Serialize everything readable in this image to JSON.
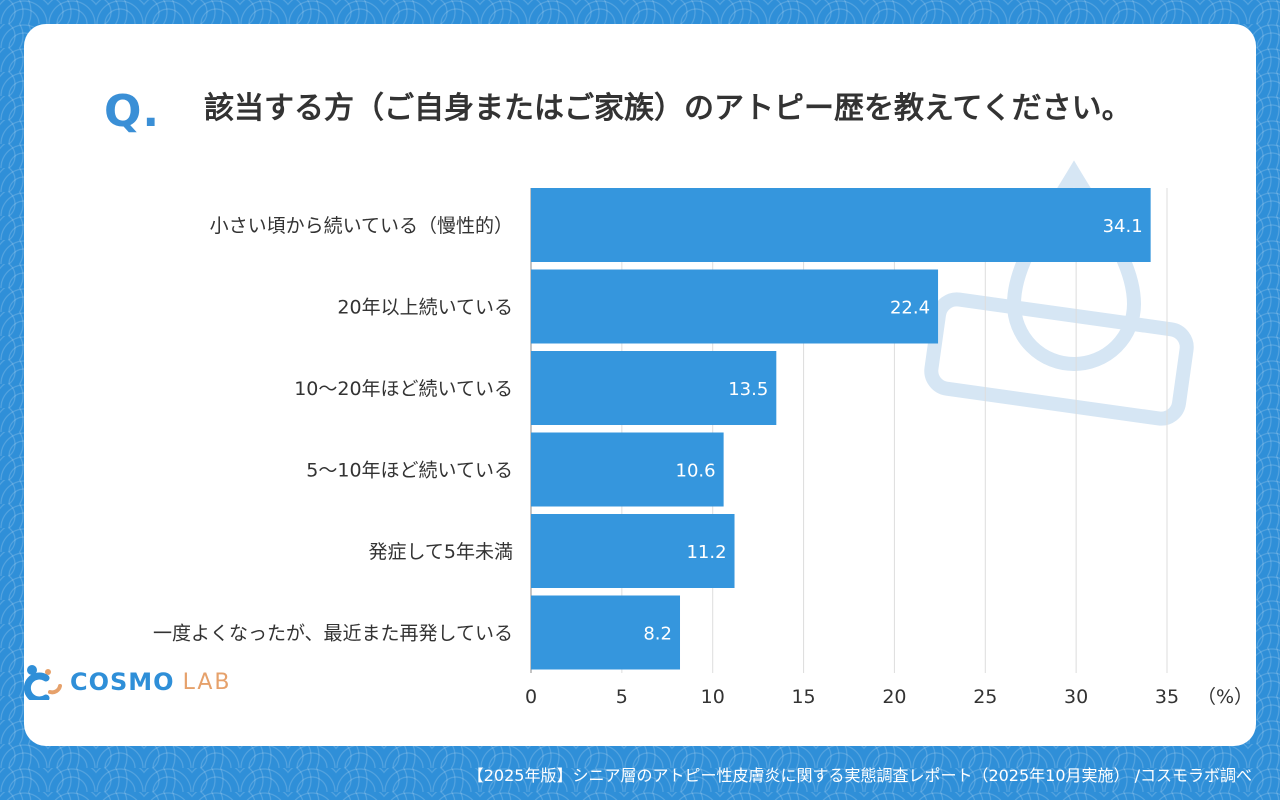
{
  "question": {
    "mark": "Q.",
    "text": "該当する方（ご自身またはご家族）のアトピー歴を教えてください。"
  },
  "chart_data": {
    "type": "bar",
    "orientation": "horizontal",
    "categories": [
      "小さい頃から続いている（慢性的）",
      "20年以上続いている",
      "10～20年ほど続いている",
      "5～10年ほど続いている",
      "発症して5年未満",
      "一度よくなったが、最近また再発している"
    ],
    "values": [
      34.1,
      22.4,
      13.5,
      10.6,
      11.2,
      8.2
    ],
    "value_labels": [
      "34.1",
      "22.4",
      "13.5",
      "10.6",
      "11.2",
      "8.2"
    ],
    "xlim": [
      0,
      35
    ],
    "xticks": [
      "0",
      "5",
      "10",
      "15",
      "20",
      "25",
      "30",
      "35"
    ],
    "xunit": "（%）",
    "bar_color": "#3596dd",
    "grid": true
  },
  "logo": {
    "cosmo": "COSMO",
    "lab": "LAB"
  },
  "footer": "【2025年版】シニア層のアトピー性皮膚炎に関する実態調査レポート（2025年10月実施） /コスモラボ調べ"
}
